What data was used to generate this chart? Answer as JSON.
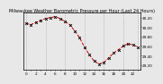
{
  "title": "Milwaukee Weather Barometric Pressure per Hour (Last 24 Hours)",
  "background_color": "#e8e8e8",
  "plot_bg_color": "#e8e8e8",
  "line_color": "#cc0000",
  "line_style": "--",
  "marker": "x",
  "marker_color": "#000000",
  "marker_size": 2.0,
  "marker_lw": 0.6,
  "line_width": 0.7,
  "hours": [
    0,
    1,
    2,
    3,
    4,
    5,
    6,
    7,
    8,
    9,
    10,
    11,
    12,
    13,
    14,
    15,
    16,
    17,
    18,
    19,
    20,
    21,
    22,
    23
  ],
  "pressure": [
    30.08,
    30.05,
    30.1,
    30.14,
    30.18,
    30.2,
    30.22,
    30.18,
    30.12,
    30.05,
    29.92,
    29.78,
    29.58,
    29.42,
    29.28,
    29.22,
    29.25,
    29.35,
    29.45,
    29.52,
    29.6,
    29.65,
    29.62,
    29.58
  ],
  "ylim": [
    29.1,
    30.3
  ],
  "ytick_labels": [
    "29.20",
    "29.40",
    "29.60",
    "29.80",
    "30.00",
    "30.20"
  ],
  "ytick_values": [
    29.2,
    29.4,
    29.6,
    29.8,
    30.0,
    30.2
  ],
  "xlim": [
    -0.5,
    23.5
  ],
  "vgrid_positions": [
    0,
    4,
    8,
    12,
    16,
    20,
    23
  ],
  "grid_color": "#999999",
  "grid_style": ":",
  "grid_lw": 0.5,
  "tick_fontsize": 3.0,
  "title_fontsize": 3.5,
  "spine_lw": 0.5
}
